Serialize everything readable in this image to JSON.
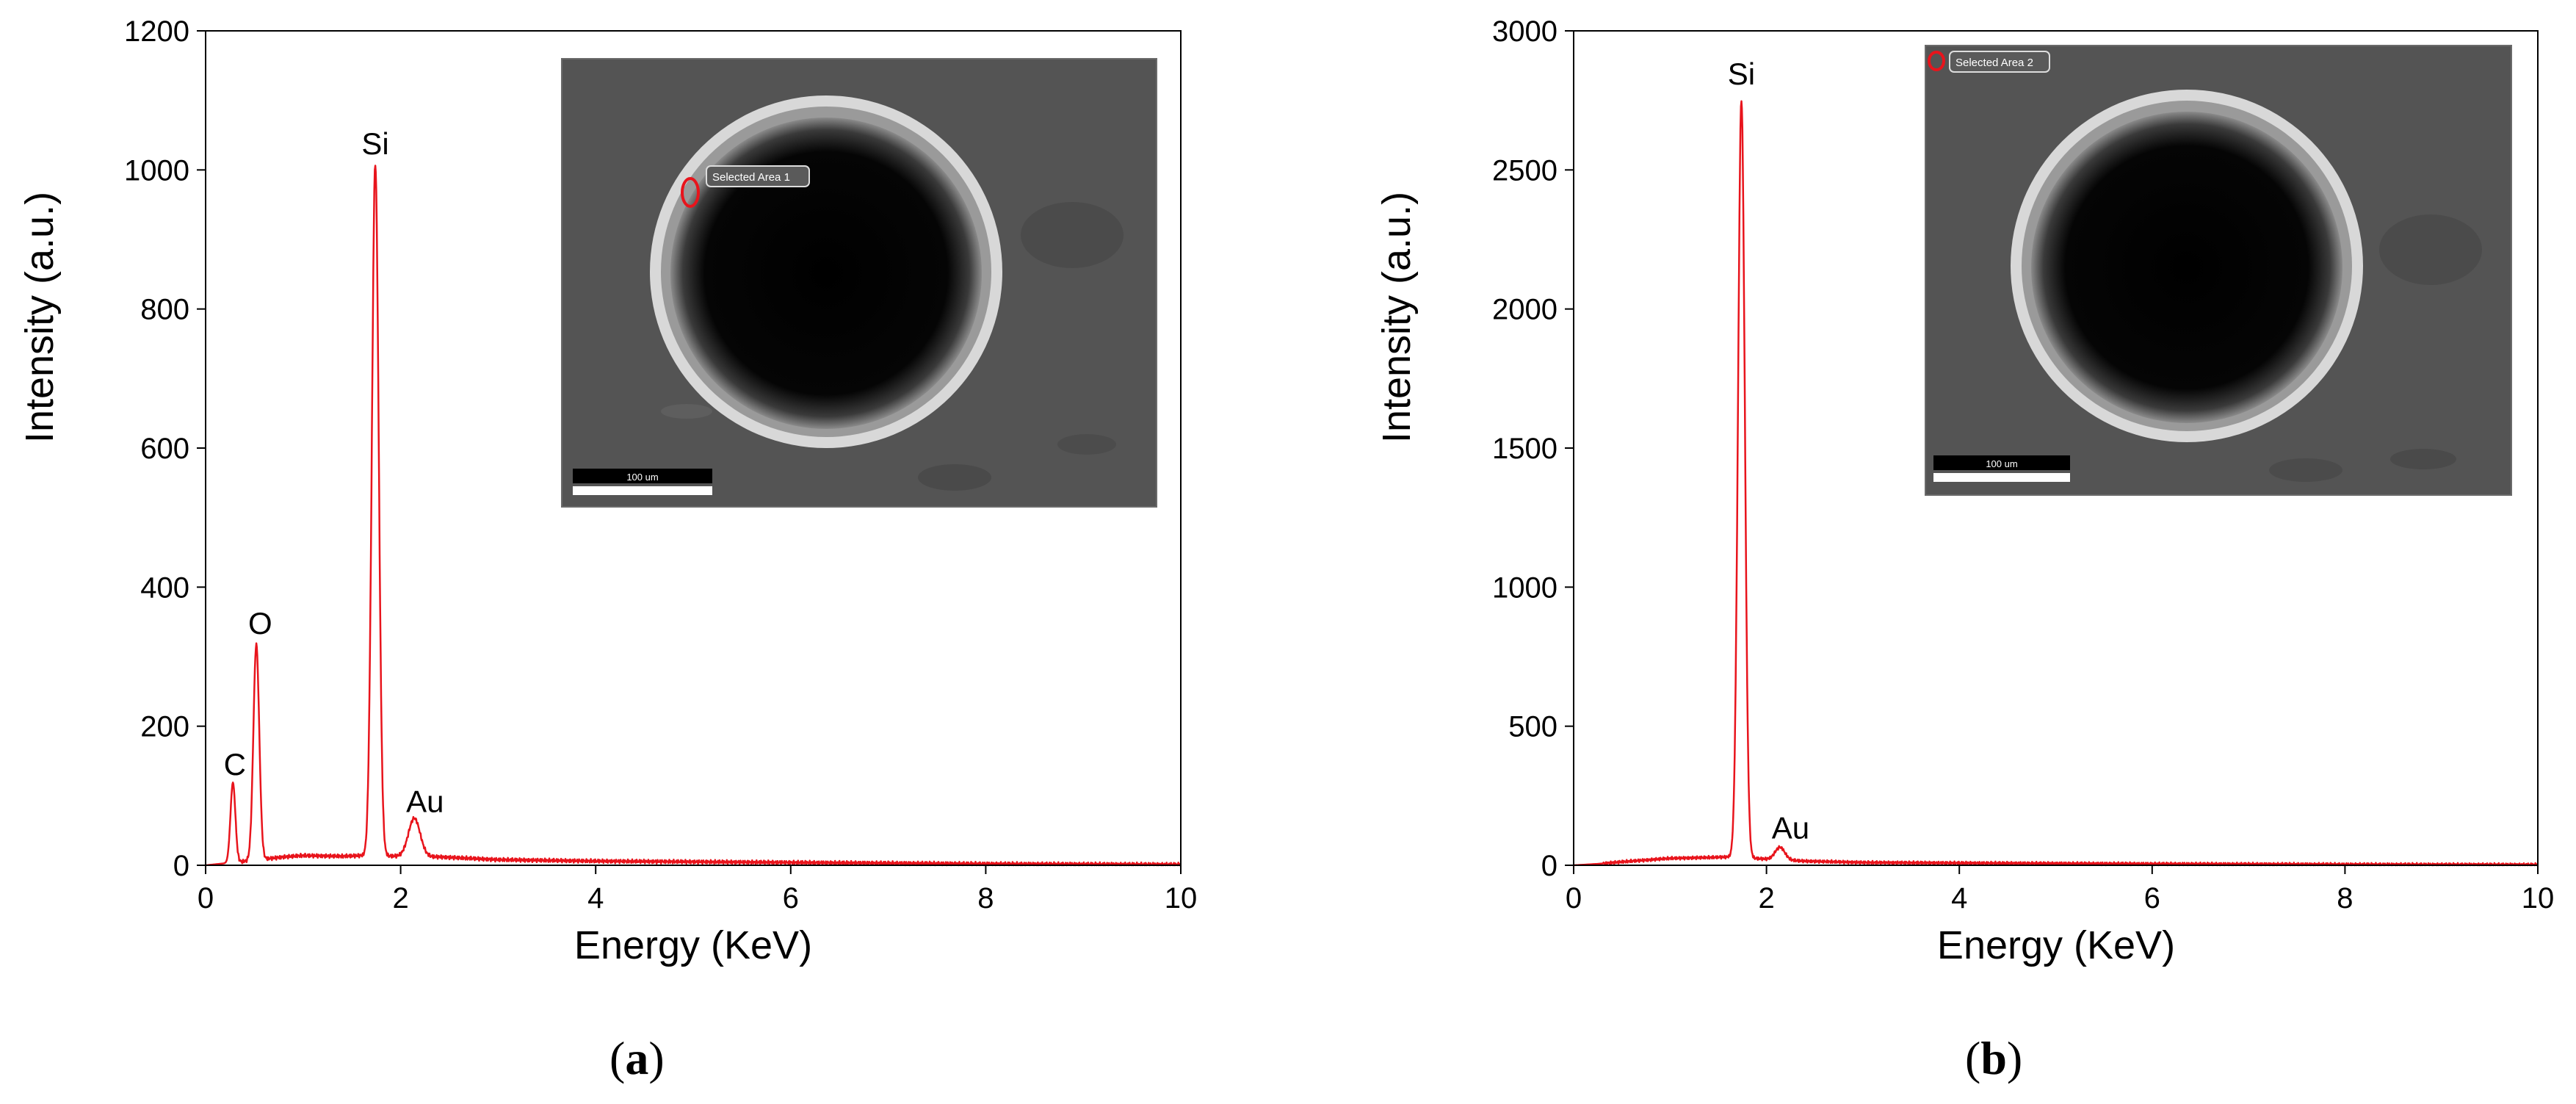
{
  "chart_data": [
    {
      "type": "line",
      "panel_label": "(a)",
      "panel_letter": "a",
      "xlabel": "Energy (KeV)",
      "ylabel": "Intensity (a.u.)",
      "xlim": [
        0,
        10
      ],
      "ylim": [
        0,
        1200
      ],
      "xticks": [
        0,
        2,
        4,
        6,
        8,
        10
      ],
      "yticks": [
        0,
        200,
        400,
        600,
        800,
        1000,
        1200
      ],
      "grid": false,
      "line_color": "#e8141c",
      "peaks": [
        {
          "x": 0.28,
          "y": 115,
          "width": 0.025
        },
        {
          "x": 0.52,
          "y": 310,
          "width": 0.03
        },
        {
          "x": 1.74,
          "y": 995,
          "width": 0.035
        },
        {
          "x": 2.14,
          "y": 55,
          "width": 0.06
        }
      ],
      "baseline": [
        [
          0,
          0
        ],
        [
          0.35,
          5
        ],
        [
          0.8,
          12
        ],
        [
          1.0,
          14
        ],
        [
          1.4,
          13
        ],
        [
          1.6,
          14
        ],
        [
          2.4,
          12
        ],
        [
          3.0,
          8
        ],
        [
          4.0,
          6
        ],
        [
          6.0,
          4
        ],
        [
          8.0,
          2
        ],
        [
          10.0,
          1
        ]
      ],
      "peak_labels": [
        {
          "text": "C",
          "x": 0.3,
          "y": 115
        },
        {
          "text": "O",
          "x": 0.56,
          "y": 318
        },
        {
          "text": "Si",
          "x": 1.74,
          "y": 1008
        },
        {
          "text": "Au",
          "x": 2.25,
          "y": 62
        }
      ],
      "inset": {
        "selection_label": "Selected Area 1",
        "scale_label": "100 um"
      }
    },
    {
      "type": "line",
      "panel_label": "(b)",
      "panel_letter": "b",
      "xlabel": "Energy (KeV)",
      "ylabel": "Intensity (a.u.)",
      "xlim": [
        0,
        10
      ],
      "ylim": [
        0,
        3000
      ],
      "xticks": [
        0,
        2,
        4,
        6,
        8,
        10
      ],
      "yticks": [
        0,
        500,
        1000,
        1500,
        2000,
        2500,
        3000
      ],
      "grid": false,
      "line_color": "#e8141c",
      "peaks": [
        {
          "x": 1.74,
          "y": 2725,
          "width": 0.035
        },
        {
          "x": 2.14,
          "y": 45,
          "width": 0.05
        }
      ],
      "baseline": [
        [
          0,
          0
        ],
        [
          0.25,
          5
        ],
        [
          0.6,
          15
        ],
        [
          1.0,
          25
        ],
        [
          1.4,
          28
        ],
        [
          1.6,
          30
        ],
        [
          2.4,
          15
        ],
        [
          3.0,
          10
        ],
        [
          4.0,
          8
        ],
        [
          6.0,
          5
        ],
        [
          8.0,
          3
        ],
        [
          10.0,
          2
        ]
      ],
      "peak_labels": [
        {
          "text": "Si",
          "x": 1.74,
          "y": 2770
        },
        {
          "text": "Au",
          "x": 2.25,
          "y": 60
        }
      ],
      "inset": {
        "selection_label": "Selected Area 2",
        "scale_label": "100 um"
      }
    }
  ]
}
